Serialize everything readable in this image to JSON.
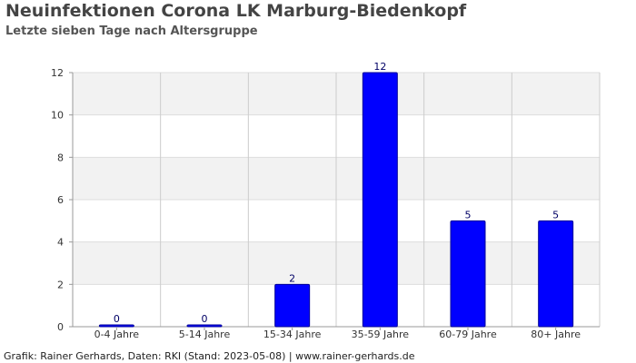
{
  "chart_data": {
    "type": "bar",
    "title": "Neuinfektionen Corona LK Marburg-Biedenkopf",
    "subtitle": "Letzte sieben Tage nach Altersgruppe",
    "categories": [
      "0-4 Jahre",
      "5-14 Jahre",
      "15-34 Jahre",
      "35-59 Jahre",
      "60-79 Jahre",
      "80+ Jahre"
    ],
    "values": [
      0,
      0,
      2,
      12,
      5,
      5
    ],
    "ylim": [
      0,
      12
    ],
    "yticks": [
      0,
      2,
      4,
      6,
      8,
      10,
      12
    ],
    "xlabel": "",
    "ylabel": "",
    "grid": true,
    "bar_color": "#0000ff",
    "bar_stroke": "#00009a",
    "band_color": "#f2f2f2",
    "grid_color": "#cccccc"
  },
  "footer": "Grafik: Rainer Gerhards, Daten: RKI (Stand: 2023-05-08) | www.rainer-gerhards.de"
}
